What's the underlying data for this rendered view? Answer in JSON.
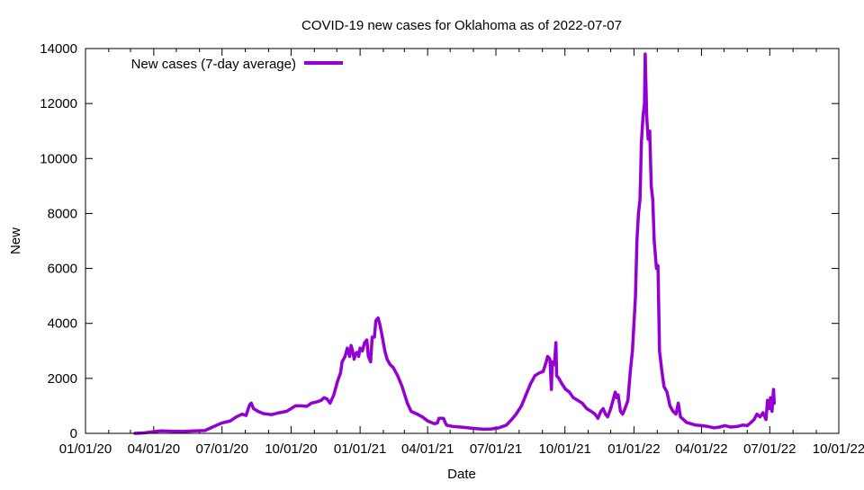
{
  "chart_data": {
    "type": "line",
    "title": "COVID-19 new cases for Oklahoma as of 2022-07-07",
    "xlabel": "Date",
    "ylabel": "New",
    "xlim": [
      "2020-01-01",
      "2022-10-01"
    ],
    "ylim": [
      0,
      14000
    ],
    "x_ticks": [
      "01/01/20",
      "04/01/20",
      "07/01/20",
      "10/01/20",
      "01/01/21",
      "04/01/21",
      "07/01/21",
      "10/01/21",
      "01/01/22",
      "04/01/22",
      "07/01/22",
      "10/01/22"
    ],
    "y_ticks": [
      0,
      2000,
      4000,
      6000,
      8000,
      10000,
      12000,
      14000
    ],
    "grid": false,
    "legend_position": "top-left",
    "series": [
      {
        "name": "New cases (7-day average)",
        "color": "#9400d3",
        "points": [
          [
            "2020-03-07",
            0
          ],
          [
            "2020-03-20",
            20
          ],
          [
            "2020-03-31",
            60
          ],
          [
            "2020-04-10",
            90
          ],
          [
            "2020-04-25",
            80
          ],
          [
            "2020-05-10",
            70
          ],
          [
            "2020-05-25",
            90
          ],
          [
            "2020-06-08",
            100
          ],
          [
            "2020-06-20",
            250
          ],
          [
            "2020-07-01",
            380
          ],
          [
            "2020-07-12",
            450
          ],
          [
            "2020-07-20",
            600
          ],
          [
            "2020-07-28",
            700
          ],
          [
            "2020-08-02",
            650
          ],
          [
            "2020-08-05",
            900
          ],
          [
            "2020-08-07",
            1050
          ],
          [
            "2020-08-09",
            1100
          ],
          [
            "2020-08-12",
            900
          ],
          [
            "2020-08-18",
            800
          ],
          [
            "2020-08-25",
            720
          ],
          [
            "2020-09-05",
            680
          ],
          [
            "2020-09-15",
            750
          ],
          [
            "2020-09-25",
            800
          ],
          [
            "2020-10-01",
            900
          ],
          [
            "2020-10-07",
            1000
          ],
          [
            "2020-10-15",
            1000
          ],
          [
            "2020-10-22",
            980
          ],
          [
            "2020-10-28",
            1100
          ],
          [
            "2020-11-05",
            1150
          ],
          [
            "2020-11-10",
            1200
          ],
          [
            "2020-11-14",
            1300
          ],
          [
            "2020-11-18",
            1250
          ],
          [
            "2020-11-22",
            1100
          ],
          [
            "2020-11-27",
            1400
          ],
          [
            "2020-12-02",
            1900
          ],
          [
            "2020-12-06",
            2200
          ],
          [
            "2020-12-08",
            2600
          ],
          [
            "2020-12-12",
            2800
          ],
          [
            "2020-12-15",
            3100
          ],
          [
            "2020-12-18",
            2800
          ],
          [
            "2020-12-20",
            3200
          ],
          [
            "2020-12-22",
            3000
          ],
          [
            "2020-12-24",
            2700
          ],
          [
            "2020-12-26",
            2900
          ],
          [
            "2020-12-28",
            2950
          ],
          [
            "2020-12-30",
            2800
          ],
          [
            "2021-01-01",
            3100
          ],
          [
            "2021-01-04",
            3000
          ],
          [
            "2021-01-07",
            3300
          ],
          [
            "2021-01-10",
            3400
          ],
          [
            "2021-01-12",
            2800
          ],
          [
            "2021-01-15",
            2600
          ],
          [
            "2021-01-17",
            3500
          ],
          [
            "2021-01-20",
            3500
          ],
          [
            "2021-01-22",
            4100
          ],
          [
            "2021-01-25",
            4200
          ],
          [
            "2021-01-27",
            4000
          ],
          [
            "2021-01-30",
            3600
          ],
          [
            "2021-02-03",
            3000
          ],
          [
            "2021-02-06",
            2700
          ],
          [
            "2021-02-10",
            2500
          ],
          [
            "2021-02-14",
            2400
          ],
          [
            "2021-02-20",
            2100
          ],
          [
            "2021-02-26",
            1700
          ],
          [
            "2021-03-05",
            1100
          ],
          [
            "2021-03-10",
            800
          ],
          [
            "2021-03-18",
            700
          ],
          [
            "2021-03-25",
            600
          ],
          [
            "2021-04-01",
            450
          ],
          [
            "2021-04-10",
            350
          ],
          [
            "2021-04-14",
            380
          ],
          [
            "2021-04-16",
            550
          ],
          [
            "2021-04-22",
            550
          ],
          [
            "2021-04-26",
            300
          ],
          [
            "2021-05-05",
            250
          ],
          [
            "2021-05-15",
            230
          ],
          [
            "2021-05-25",
            200
          ],
          [
            "2021-06-05",
            170
          ],
          [
            "2021-06-15",
            150
          ],
          [
            "2021-06-25",
            160
          ],
          [
            "2021-07-05",
            200
          ],
          [
            "2021-07-15",
            300
          ],
          [
            "2021-07-22",
            500
          ],
          [
            "2021-07-28",
            700
          ],
          [
            "2021-08-04",
            1000
          ],
          [
            "2021-08-10",
            1400
          ],
          [
            "2021-08-16",
            1800
          ],
          [
            "2021-08-22",
            2100
          ],
          [
            "2021-08-28",
            2200
          ],
          [
            "2021-09-02",
            2250
          ],
          [
            "2021-09-06",
            2600
          ],
          [
            "2021-09-08",
            2800
          ],
          [
            "2021-09-11",
            2700
          ],
          [
            "2021-09-13",
            1600
          ],
          [
            "2021-09-14",
            2600
          ],
          [
            "2021-09-17",
            2500
          ],
          [
            "2021-09-19",
            3300
          ],
          [
            "2021-09-20",
            2100
          ],
          [
            "2021-09-23",
            2000
          ],
          [
            "2021-09-27",
            1800
          ],
          [
            "2021-10-02",
            1600
          ],
          [
            "2021-10-07",
            1500
          ],
          [
            "2021-10-12",
            1300
          ],
          [
            "2021-10-18",
            1200
          ],
          [
            "2021-10-24",
            1100
          ],
          [
            "2021-10-30",
            900
          ],
          [
            "2021-11-05",
            800
          ],
          [
            "2021-11-10",
            700
          ],
          [
            "2021-11-14",
            550
          ],
          [
            "2021-11-18",
            800
          ],
          [
            "2021-11-21",
            900
          ],
          [
            "2021-11-24",
            700
          ],
          [
            "2021-11-27",
            600
          ],
          [
            "2021-12-01",
            900
          ],
          [
            "2021-12-04",
            1200
          ],
          [
            "2021-12-07",
            1500
          ],
          [
            "2021-12-09",
            1300
          ],
          [
            "2021-12-11",
            1400
          ],
          [
            "2021-12-14",
            800
          ],
          [
            "2021-12-17",
            700
          ],
          [
            "2021-12-20",
            900
          ],
          [
            "2021-12-24",
            1200
          ],
          [
            "2021-12-27",
            2200
          ],
          [
            "2021-12-30",
            3000
          ],
          [
            "2022-01-01",
            4000
          ],
          [
            "2022-01-03",
            5000
          ],
          [
            "2022-01-05",
            7000
          ],
          [
            "2022-01-07",
            8000
          ],
          [
            "2022-01-09",
            8500
          ],
          [
            "2022-01-11",
            10600
          ],
          [
            "2022-01-13",
            11500
          ],
          [
            "2022-01-15",
            12000
          ],
          [
            "2022-01-16",
            13800
          ],
          [
            "2022-01-18",
            11500
          ],
          [
            "2022-01-20",
            10700
          ],
          [
            "2022-01-22",
            11000
          ],
          [
            "2022-01-24",
            9000
          ],
          [
            "2022-01-26",
            8500
          ],
          [
            "2022-01-28",
            7000
          ],
          [
            "2022-01-31",
            6000
          ],
          [
            "2022-02-02",
            6100
          ],
          [
            "2022-02-04",
            3000
          ],
          [
            "2022-02-07",
            2300
          ],
          [
            "2022-02-10",
            1700
          ],
          [
            "2022-02-14",
            1500
          ],
          [
            "2022-02-18",
            1000
          ],
          [
            "2022-02-22",
            800
          ],
          [
            "2022-02-26",
            700
          ],
          [
            "2022-03-01",
            1100
          ],
          [
            "2022-03-04",
            600
          ],
          [
            "2022-03-08",
            500
          ],
          [
            "2022-03-12",
            400
          ],
          [
            "2022-03-18",
            350
          ],
          [
            "2022-03-24",
            300
          ],
          [
            "2022-04-01",
            280
          ],
          [
            "2022-04-10",
            250
          ],
          [
            "2022-04-18",
            200
          ],
          [
            "2022-04-25",
            230
          ],
          [
            "2022-05-02",
            280
          ],
          [
            "2022-05-10",
            230
          ],
          [
            "2022-05-18",
            250
          ],
          [
            "2022-05-26",
            300
          ],
          [
            "2022-06-01",
            280
          ],
          [
            "2022-06-06",
            400
          ],
          [
            "2022-06-10",
            500
          ],
          [
            "2022-06-14",
            700
          ],
          [
            "2022-06-18",
            600
          ],
          [
            "2022-06-22",
            750
          ],
          [
            "2022-06-26",
            500
          ],
          [
            "2022-06-28",
            1200
          ],
          [
            "2022-06-30",
            900
          ],
          [
            "2022-07-02",
            1300
          ],
          [
            "2022-07-04",
            800
          ],
          [
            "2022-07-06",
            1600
          ],
          [
            "2022-07-07",
            1100
          ]
        ]
      }
    ]
  }
}
